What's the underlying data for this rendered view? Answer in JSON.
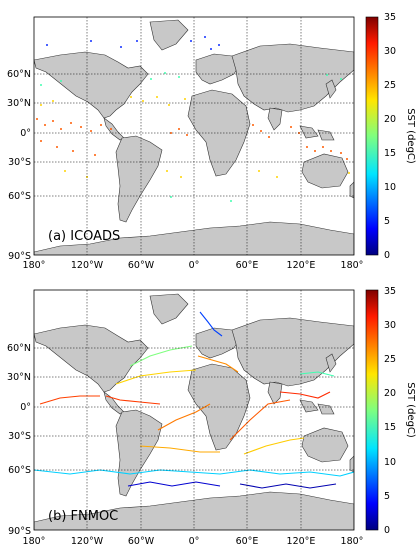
{
  "panels": [
    {
      "id": "a",
      "label": "(a) ICOADS",
      "lat_ticks": [
        "90°S",
        "60°S",
        "30°S",
        "0°",
        "30°N",
        "60°N"
      ],
      "lon_ticks": [
        "180°",
        "120°W",
        "60°W",
        "0°",
        "60°E",
        "120°E",
        "180°"
      ],
      "colorbar_label": "SST (degC)",
      "colorbar_ticks": [
        "0",
        "5",
        "10",
        "15",
        "20",
        "25",
        "30",
        "35"
      ],
      "colorbar_range": [
        0,
        35
      ],
      "colormap": "jet",
      "data_pattern": "dense scattered observations along coastlines and shipping lanes"
    },
    {
      "id": "b",
      "label": "(b) FNMOC",
      "lat_ticks": [
        "90°S",
        "60°S",
        "30°S",
        "0°",
        "30°N",
        "60°N"
      ],
      "lon_ticks": [
        "180°",
        "120°W",
        "60°W",
        "0°",
        "60°E",
        "120°E",
        "180°"
      ],
      "colorbar_label": "SST (degC)",
      "colorbar_ticks": [
        "0",
        "5",
        "10",
        "15",
        "20",
        "25",
        "30",
        "35"
      ],
      "colorbar_range": [
        0,
        35
      ],
      "colormap": "jet",
      "data_pattern": "observations along ship tracks and Southern Ocean transects"
    }
  ],
  "colors": {
    "land": "#c8c8c8",
    "coast": "#333333",
    "grid": "#000000",
    "background": "#ffffff"
  }
}
